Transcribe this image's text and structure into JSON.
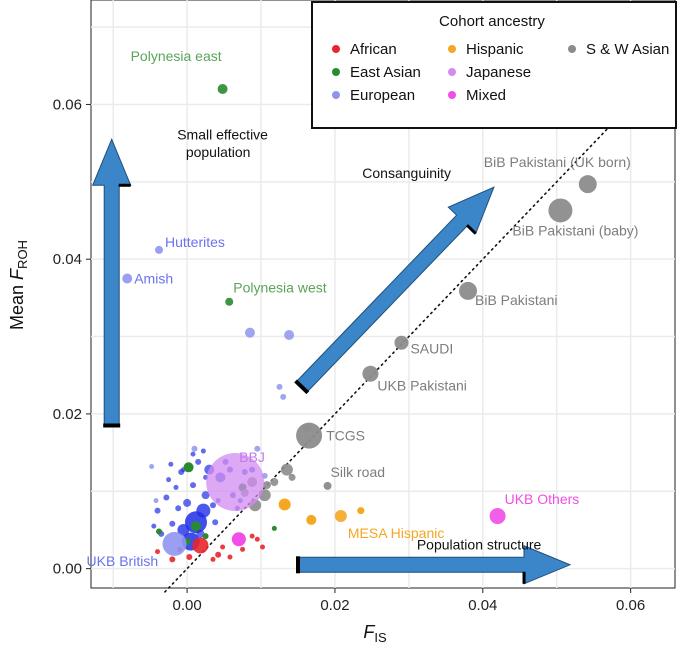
{
  "chart_data": {
    "type": "scatter",
    "xlabel_main": "F",
    "xlabel_sub": "IS",
    "ylabel_prefix": "Mean ",
    "ylabel_main": "F",
    "ylabel_sub": "ROH",
    "xlim": [
      -0.013,
      0.066
    ],
    "ylim": [
      -0.0025,
      0.0735
    ],
    "x_ticks": [
      0.0,
      0.02,
      0.04,
      0.06
    ],
    "x_tick_labels": [
      "0.00",
      "0.02",
      "0.04",
      "0.06"
    ],
    "y_ticks": [
      0.0,
      0.02,
      0.04,
      0.06
    ],
    "y_tick_labels": [
      "0.00",
      "0.02",
      "0.04",
      "0.06"
    ],
    "grid": true,
    "reference_line": {
      "style": "dotted",
      "points": [
        [
          -0.003,
          -0.003
        ],
        [
          0.057,
          0.057
        ]
      ]
    },
    "legend": {
      "title": "Cohort ancestry",
      "position": "top-right",
      "entries": [
        {
          "label": "African",
          "color": "#e8262b"
        },
        {
          "label": "East Asian",
          "color": "#2a8a2f"
        },
        {
          "label": "European",
          "color": "#8f95ef"
        },
        {
          "label": "Hispanic",
          "color": "#f5a623"
        },
        {
          "label": "Japanese",
          "color": "#d28cf0"
        },
        {
          "label": "Mixed",
          "color": "#f04ee6"
        },
        {
          "label": "S & W Asian",
          "color": "#8c8c8c"
        }
      ]
    },
    "colors": {
      "African": "#e8262b",
      "East Asian": "#2a8a2f",
      "European": "#8f95ef",
      "EuropeanDark": "#1f2ee6",
      "Hispanic": "#f5a623",
      "Japanese": "#d28cf0",
      "Mixed": "#f04ee6",
      "S & W Asian": "#8c8c8c"
    },
    "labeled_points": [
      {
        "name": "Polynesia east",
        "ancestry": "East Asian",
        "x": 0.0048,
        "y": 0.062,
        "r": 5,
        "label_dx": -92,
        "label_dy": -28
      },
      {
        "name": "Polynesia west",
        "ancestry": "East Asian",
        "x": 0.0057,
        "y": 0.0345,
        "r": 4,
        "label_dx": 4,
        "label_dy": -9
      },
      {
        "name": "Hutterites",
        "ancestry": "European",
        "x": -0.0038,
        "y": 0.0412,
        "r": 4,
        "label_dx": 6,
        "label_dy": -3
      },
      {
        "name": "Amish",
        "ancestry": "European",
        "x": -0.0081,
        "y": 0.0375,
        "r": 5,
        "label_dx": 7,
        "label_dy": 5
      },
      {
        "name": "BiB Pakistani (UK born)",
        "ancestry": "S & W Asian",
        "x": 0.0542,
        "y": 0.0497,
        "r": 9,
        "label_dx": -104,
        "label_dy": -17
      },
      {
        "name": "BiB Pakistani (baby)",
        "ancestry": "S & W Asian",
        "x": 0.0505,
        "y": 0.0463,
        "r": 12,
        "label_dx": -48,
        "label_dy": 25
      },
      {
        "name": "BiB Pakistani",
        "ancestry": "S & W Asian",
        "x": 0.038,
        "y": 0.0359,
        "r": 9,
        "label_dx": 7,
        "label_dy": 14
      },
      {
        "name": "SAUDI",
        "ancestry": "S & W Asian",
        "x": 0.029,
        "y": 0.0292,
        "r": 7,
        "label_dx": 9,
        "label_dy": 11
      },
      {
        "name": "UKB Pakistani",
        "ancestry": "S & W Asian",
        "x": 0.0248,
        "y": 0.0252,
        "r": 8,
        "label_dx": 7,
        "label_dy": 17
      },
      {
        "name": "TCGS",
        "ancestry": "S & W Asian",
        "x": 0.0165,
        "y": 0.0172,
        "r": 13,
        "label_dx": 17,
        "label_dy": 5
      },
      {
        "name": "Silk road",
        "ancestry": "S & W Asian",
        "x": 0.019,
        "y": 0.0107,
        "r": 4,
        "label_dx": 3,
        "label_dy": -9
      },
      {
        "name": "BBJ",
        "ancestry": "Japanese",
        "x": 0.0065,
        "y": 0.0112,
        "r": 29,
        "label_dx": 4,
        "label_dy": -20
      },
      {
        "name": "UKB Others",
        "ancestry": "Mixed",
        "x": 0.042,
        "y": 0.0068,
        "r": 8,
        "label_dx": 7,
        "label_dy": -12
      },
      {
        "name": "MESA Hispanic",
        "ancestry": "Hispanic",
        "x": 0.0208,
        "y": 0.0068,
        "r": 6,
        "label_dx": 7,
        "label_dy": 22
      },
      {
        "name": "UKB British",
        "ancestry": "European",
        "x": -0.0017,
        "y": 0.0032,
        "r": 12,
        "label_dx": -88,
        "label_dy": 22
      }
    ],
    "points": [
      {
        "x": 0.0012,
        "y": 0.006,
        "r": 11,
        "c": "EuropeanDark",
        "o": 0.85
      },
      {
        "x": 0.0005,
        "y": 0.0035,
        "r": 9,
        "c": "EuropeanDark",
        "o": 0.85
      },
      {
        "x": 0.0022,
        "y": 0.0075,
        "r": 7,
        "c": "EuropeanDark",
        "o": 0.8
      },
      {
        "x": -0.0005,
        "y": 0.005,
        "r": 6,
        "c": "EuropeanDark",
        "o": 0.8
      },
      {
        "x": 0.003,
        "y": 0.0128,
        "r": 5,
        "c": "EuropeanDark",
        "o": 0.7
      },
      {
        "x": 0.0045,
        "y": 0.0118,
        "r": 5,
        "c": "EuropeanDark",
        "o": 0.7
      },
      {
        "x": 0.0025,
        "y": 0.0095,
        "r": 4,
        "c": "EuropeanDark",
        "o": 0.7
      },
      {
        "x": 0.0,
        "y": 0.0085,
        "r": 4,
        "c": "EuropeanDark",
        "o": 0.7
      },
      {
        "x": -0.0012,
        "y": 0.0078,
        "r": 3,
        "c": "EuropeanDark",
        "o": 0.7
      },
      {
        "x": 0.0008,
        "y": 0.0108,
        "r": 3,
        "c": "EuropeanDark",
        "o": 0.7
      },
      {
        "x": 0.0035,
        "y": 0.0082,
        "r": 3,
        "c": "EuropeanDark",
        "o": 0.7
      },
      {
        "x": -0.002,
        "y": 0.0058,
        "r": 3,
        "c": "EuropeanDark",
        "o": 0.7
      },
      {
        "x": 0.0018,
        "y": 0.0045,
        "r": 4,
        "c": "EuropeanDark",
        "o": 0.7
      },
      {
        "x": -0.0028,
        "y": 0.0092,
        "r": 3,
        "c": "EuropeanDark",
        "o": 0.7
      },
      {
        "x": 0.0015,
        "y": 0.0138,
        "r": 3,
        "c": "EuropeanDark",
        "o": 0.7
      },
      {
        "x": -0.0008,
        "y": 0.0125,
        "r": 3,
        "c": "EuropeanDark",
        "o": 0.7
      },
      {
        "x": 0.0052,
        "y": 0.0138,
        "r": 3,
        "c": "EuropeanDark",
        "o": 0.7
      },
      {
        "x": 0.0038,
        "y": 0.006,
        "r": 3,
        "c": "EuropeanDark",
        "o": 0.7
      },
      {
        "x": -0.004,
        "y": 0.0075,
        "r": 3,
        "c": "EuropeanDark",
        "o": 0.7
      },
      {
        "x": -0.0035,
        "y": 0.0045,
        "r": 3,
        "c": "EuropeanDark",
        "o": 0.7
      },
      {
        "x": 0.0058,
        "y": 0.0128,
        "r": 3,
        "c": "EuropeanDark",
        "o": 0.7
      },
      {
        "x": 0.0062,
        "y": 0.0095,
        "r": 3,
        "c": "EuropeanDark",
        "o": 0.7
      },
      {
        "x": -0.0015,
        "y": 0.0105,
        "r": 2.5,
        "c": "EuropeanDark",
        "o": 0.7
      },
      {
        "x": 0.0025,
        "y": 0.0118,
        "r": 2.5,
        "c": "EuropeanDark",
        "o": 0.7
      },
      {
        "x": -0.0045,
        "y": 0.0055,
        "r": 2.5,
        "c": "EuropeanDark",
        "o": 0.7
      },
      {
        "x": 0.0068,
        "y": 0.0078,
        "r": 2.5,
        "c": "EuropeanDark",
        "o": 0.7
      },
      {
        "x": 0.0078,
        "y": 0.0125,
        "r": 3,
        "c": "EuropeanDark",
        "o": 0.7
      },
      {
        "x": 0.0088,
        "y": 0.0128,
        "r": 3,
        "c": "EuropeanDark",
        "o": 0.7
      },
      {
        "x": 0.0072,
        "y": 0.0088,
        "r": 2.5,
        "c": "EuropeanDark",
        "o": 0.7
      },
      {
        "x": -0.0025,
        "y": 0.0115,
        "r": 2.5,
        "c": "EuropeanDark",
        "o": 0.7
      },
      {
        "x": -0.0005,
        "y": 0.0128,
        "r": 2.5,
        "c": "EuropeanDark",
        "o": 0.7
      },
      {
        "x": 0.0008,
        "y": 0.0148,
        "r": 2.5,
        "c": "EuropeanDark",
        "o": 0.7
      },
      {
        "x": 0.0042,
        "y": 0.0088,
        "r": 2.5,
        "c": "EuropeanDark",
        "o": 0.7
      },
      {
        "x": -0.0022,
        "y": 0.0135,
        "r": 2.5,
        "c": "EuropeanDark",
        "o": 0.7
      },
      {
        "x": 0.0022,
        "y": 0.0152,
        "r": 2.5,
        "c": "EuropeanDark",
        "o": 0.7
      },
      {
        "x": 0.0085,
        "y": 0.0305,
        "r": 5,
        "c": "European",
        "o": 0.85
      },
      {
        "x": 0.0138,
        "y": 0.0302,
        "r": 5,
        "c": "European",
        "o": 0.85
      },
      {
        "x": 0.0125,
        "y": 0.0235,
        "r": 3,
        "c": "European",
        "o": 0.85
      },
      {
        "x": 0.013,
        "y": 0.0222,
        "r": 3,
        "c": "European",
        "o": 0.85
      },
      {
        "x": 0.0095,
        "y": 0.0155,
        "r": 3,
        "c": "European",
        "o": 0.85
      },
      {
        "x": 0.0105,
        "y": 0.012,
        "r": 3,
        "c": "European",
        "o": 0.85
      },
      {
        "x": 0.0162,
        "y": 0.0182,
        "r": 4,
        "c": "European",
        "o": 0.85
      },
      {
        "x": -0.0042,
        "y": 0.0088,
        "r": 2.5,
        "c": "European",
        "o": 0.85
      },
      {
        "x": -0.0048,
        "y": 0.0132,
        "r": 2.5,
        "c": "European",
        "o": 0.85
      },
      {
        "x": 0.001,
        "y": 0.0155,
        "r": 3,
        "c": "European",
        "o": 0.85
      },
      {
        "x": 0.0002,
        "y": 0.0131,
        "r": 5,
        "c": "East Asian",
        "o": 1
      },
      {
        "x": 0.0075,
        "y": 0.0105,
        "r": 4,
        "c": "East Asian",
        "o": 1
      },
      {
        "x": 0.0012,
        "y": 0.0055,
        "r": 5,
        "c": "East Asian",
        "o": 1
      },
      {
        "x": 0.0,
        "y": 0.0035,
        "r": 3.5,
        "c": "East Asian",
        "o": 1
      },
      {
        "x": 0.0025,
        "y": 0.0042,
        "r": 3,
        "c": "East Asian",
        "o": 1
      },
      {
        "x": 0.0118,
        "y": 0.0052,
        "r": 2.5,
        "c": "East Asian",
        "o": 1
      },
      {
        "x": -0.0038,
        "y": 0.0048,
        "r": 3,
        "c": "East Asian",
        "o": 1
      },
      {
        "x": 0.0018,
        "y": 0.003,
        "r": 8,
        "c": "African",
        "o": 0.9
      },
      {
        "x": 0.0003,
        "y": 0.0015,
        "r": 3,
        "c": "African",
        "o": 0.9
      },
      {
        "x": -0.002,
        "y": 0.0012,
        "r": 3,
        "c": "African",
        "o": 0.9
      },
      {
        "x": 0.0042,
        "y": 0.0018,
        "r": 3,
        "c": "African",
        "o": 0.9
      },
      {
        "x": 0.0058,
        "y": 0.0015,
        "r": 2.5,
        "c": "African",
        "o": 0.9
      },
      {
        "x": 0.0095,
        "y": 0.0038,
        "r": 2.5,
        "c": "African",
        "o": 0.9
      },
      {
        "x": 0.0088,
        "y": 0.0042,
        "r": 2.5,
        "c": "African",
        "o": 0.9
      },
      {
        "x": -0.004,
        "y": 0.0022,
        "r": 2.5,
        "c": "African",
        "o": 0.9
      },
      {
        "x": 0.0075,
        "y": 0.0025,
        "r": 2.5,
        "c": "African",
        "o": 0.9
      },
      {
        "x": 0.0048,
        "y": 0.0028,
        "r": 2.5,
        "c": "African",
        "o": 0.9
      },
      {
        "x": 0.0035,
        "y": 0.0012,
        "r": 2.5,
        "c": "African",
        "o": 0.9
      },
      {
        "x": 0.0102,
        "y": 0.0028,
        "r": 2.5,
        "c": "African",
        "o": 0.9
      },
      {
        "x": -0.001,
        "y": 0.0025,
        "r": 2.5,
        "c": "African",
        "o": 0.9
      },
      {
        "x": 0.007,
        "y": 0.0038,
        "r": 7,
        "c": "Mixed",
        "o": 1
      },
      {
        "x": 0.0132,
        "y": 0.0083,
        "r": 6,
        "c": "Hispanic",
        "o": 1
      },
      {
        "x": 0.0168,
        "y": 0.0063,
        "r": 5,
        "c": "Hispanic",
        "o": 1
      },
      {
        "x": 0.0235,
        "y": 0.0075,
        "r": 3.5,
        "c": "Hispanic",
        "o": 1
      },
      {
        "x": 0.0088,
        "y": 0.0112,
        "r": 5,
        "c": "S & W Asian",
        "o": 0.9
      },
      {
        "x": 0.0092,
        "y": 0.0082,
        "r": 6,
        "c": "S & W Asian",
        "o": 0.9
      },
      {
        "x": 0.0105,
        "y": 0.0095,
        "r": 6,
        "c": "S & W Asian",
        "o": 0.9
      },
      {
        "x": 0.0108,
        "y": 0.0108,
        "r": 4,
        "c": "S & W Asian",
        "o": 0.9
      },
      {
        "x": 0.0118,
        "y": 0.0112,
        "r": 4,
        "c": "S & W Asian",
        "o": 0.9
      },
      {
        "x": 0.0135,
        "y": 0.0128,
        "r": 6,
        "c": "S & W Asian",
        "o": 0.9
      },
      {
        "x": 0.0142,
        "y": 0.0118,
        "r": 3.5,
        "c": "S & W Asian",
        "o": 0.9
      },
      {
        "x": 0.0078,
        "y": 0.0098,
        "r": 4,
        "c": "S & W Asian",
        "o": 0.9
      }
    ],
    "annotations": [
      {
        "text": "Small effective",
        "x": 0.0048,
        "y": 0.0555,
        "anchor": "middle"
      },
      {
        "text": "population",
        "x": 0.0042,
        "y": 0.0532,
        "anchor": "middle"
      },
      {
        "text": "Consanguinity",
        "x": 0.0297,
        "y": 0.0505,
        "anchor": "middle"
      },
      {
        "text": "Population structure",
        "x": 0.0395,
        "y": 0.0025,
        "anchor": "middle"
      }
    ],
    "arrows": [
      {
        "name": "small-effective-population",
        "from": [
          -0.0102,
          0.0185
        ],
        "to": [
          -0.0102,
          0.0555
        ]
      },
      {
        "name": "consanguinity",
        "from": [
          0.0155,
          0.0235
        ],
        "to": [
          0.0415,
          0.0493
        ]
      },
      {
        "name": "population-structure",
        "from": [
          0.015,
          0.0005
        ],
        "to": [
          0.0518,
          0.0005
        ]
      }
    ]
  }
}
